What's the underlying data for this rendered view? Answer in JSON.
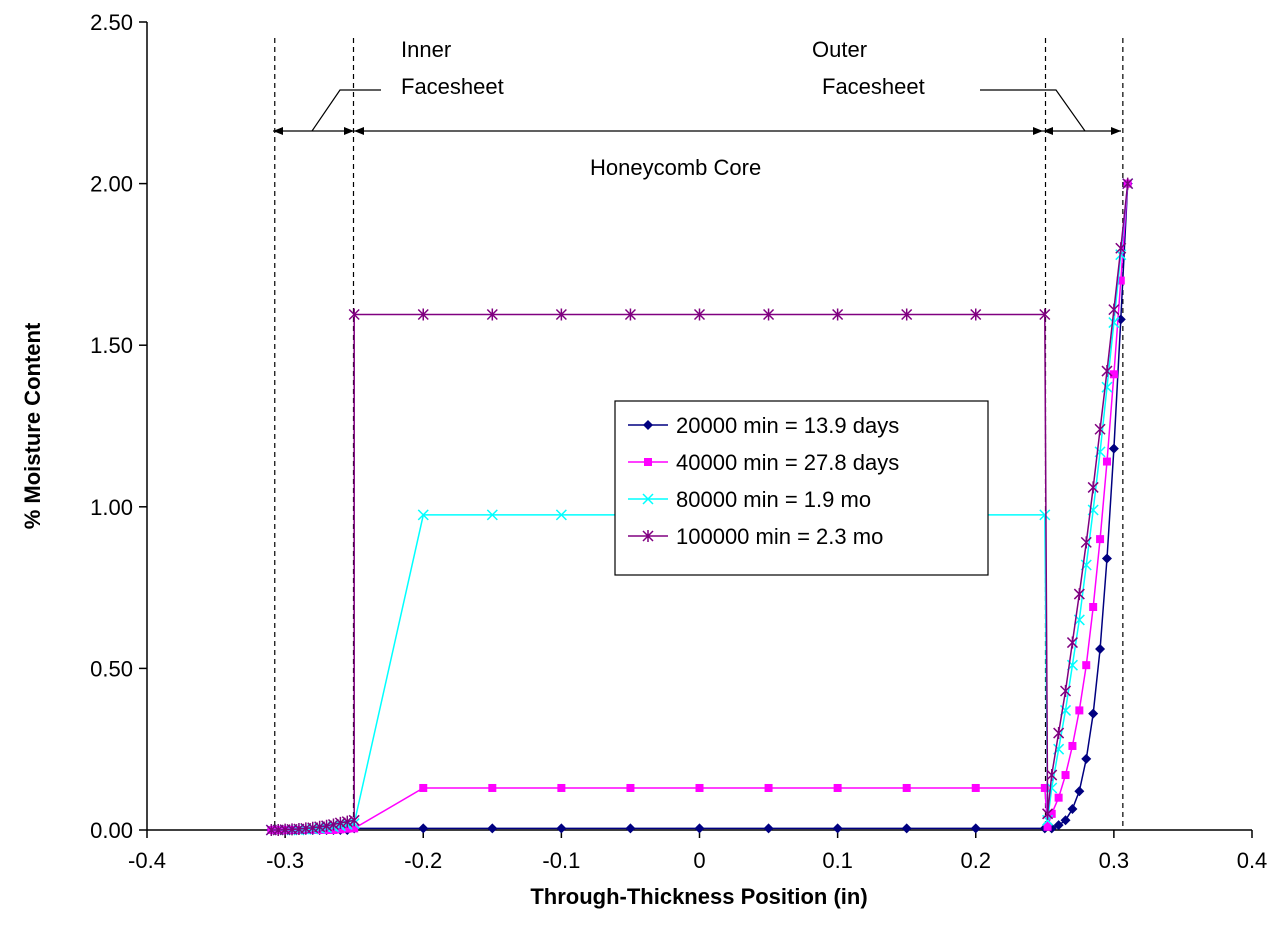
{
  "chart_data": {
    "type": "line",
    "title": "",
    "xlabel": "Through-Thickness Position (in)",
    "ylabel": "% Moisture Content",
    "xlim": [
      -0.4,
      0.4
    ],
    "ylim": [
      0,
      2.5
    ],
    "xticks": [
      "-0.4",
      "-0.3",
      "-0.2",
      "-0.1",
      "0",
      "0.1",
      "0.2",
      "0.3",
      "0.4"
    ],
    "yticks": [
      "0.00",
      "0.50",
      "1.00",
      "1.50",
      "2.00",
      "2.50"
    ],
    "grid": false,
    "legend_position": "center-right",
    "annotations": {
      "inner_line1": "Inner",
      "inner_line2": "Facesheet",
      "outer_line1": "Outer",
      "outer_line2": "Facesheet",
      "core": "Honeycomb Core"
    },
    "reference_lines_x": [
      -0.3075,
      -0.2505,
      0.2505,
      0.3065
    ],
    "series": [
      {
        "name": "20000 min = 13.9 days",
        "color": "#000080",
        "marker": "diamond",
        "x": [
          -0.31,
          -0.305,
          -0.3,
          -0.295,
          -0.29,
          -0.285,
          -0.28,
          -0.275,
          -0.27,
          -0.265,
          -0.26,
          -0.255,
          -0.25,
          -0.2,
          -0.15,
          -0.1,
          -0.05,
          0,
          0.05,
          0.1,
          0.15,
          0.2,
          0.25,
          0.255,
          0.26,
          0.265,
          0.27,
          0.275,
          0.28,
          0.285,
          0.29,
          0.295,
          0.3,
          0.305,
          0.31
        ],
        "y": [
          0,
          0,
          0,
          0,
          0,
          0,
          0,
          0,
          0,
          0,
          0,
          0,
          0.005,
          0.005,
          0.005,
          0.005,
          0.005,
          0.005,
          0.005,
          0.005,
          0.005,
          0.005,
          0.005,
          0.005,
          0.015,
          0.03,
          0.065,
          0.12,
          0.22,
          0.36,
          0.56,
          0.84,
          1.18,
          1.58,
          2.0
        ]
      },
      {
        "name": "40000 min = 27.8 days",
        "color": "#FF00FF",
        "marker": "square",
        "x": [
          -0.31,
          -0.305,
          -0.3,
          -0.295,
          -0.29,
          -0.285,
          -0.28,
          -0.275,
          -0.27,
          -0.265,
          -0.26,
          -0.255,
          -0.25,
          -0.2,
          -0.15,
          -0.1,
          -0.05,
          0,
          0.05,
          0.1,
          0.15,
          0.2,
          0.25,
          0.252,
          0.255,
          0.26,
          0.265,
          0.27,
          0.275,
          0.28,
          0.285,
          0.29,
          0.295,
          0.3,
          0.305,
          0.31
        ],
        "y": [
          0,
          0,
          0,
          0,
          0,
          0,
          0,
          0,
          0,
          0,
          0.002,
          0.004,
          0.005,
          0.13,
          0.13,
          0.13,
          0.13,
          0.13,
          0.13,
          0.13,
          0.13,
          0.13,
          0.13,
          0.01,
          0.05,
          0.1,
          0.17,
          0.26,
          0.37,
          0.51,
          0.69,
          0.9,
          1.14,
          1.41,
          1.7,
          2.0
        ]
      },
      {
        "name": "80000 min = 1.9 mo",
        "color": "#00FFFF",
        "marker": "x",
        "x": [
          -0.31,
          -0.305,
          -0.3,
          -0.295,
          -0.29,
          -0.285,
          -0.28,
          -0.275,
          -0.27,
          -0.265,
          -0.26,
          -0.255,
          -0.25,
          -0.2,
          -0.15,
          -0.1,
          -0.05,
          0,
          0.05,
          0.1,
          0.15,
          0.2,
          0.25,
          0.252,
          0.255,
          0.26,
          0.265,
          0.27,
          0.275,
          0.28,
          0.285,
          0.29,
          0.295,
          0.3,
          0.305,
          0.31
        ],
        "y": [
          0,
          0,
          0,
          0,
          0,
          0.002,
          0.003,
          0.005,
          0.007,
          0.01,
          0.013,
          0.017,
          0.02,
          0.975,
          0.975,
          0.975,
          0.975,
          0.975,
          0.975,
          0.975,
          0.975,
          0.975,
          0.975,
          0.03,
          0.13,
          0.25,
          0.37,
          0.51,
          0.65,
          0.82,
          0.99,
          1.17,
          1.37,
          1.57,
          1.78,
          2.0
        ]
      },
      {
        "name": "100000 min = 2.3 mo",
        "color": "#800080",
        "marker": "star",
        "x": [
          -0.31,
          -0.305,
          -0.3,
          -0.295,
          -0.29,
          -0.285,
          -0.28,
          -0.275,
          -0.27,
          -0.265,
          -0.26,
          -0.255,
          -0.25,
          -0.25,
          -0.2,
          -0.15,
          -0.1,
          -0.05,
          0,
          0.05,
          0.1,
          0.15,
          0.2,
          0.25,
          0.252,
          0.255,
          0.26,
          0.265,
          0.27,
          0.275,
          0.28,
          0.285,
          0.29,
          0.295,
          0.3,
          0.305,
          0.31
        ],
        "y": [
          0,
          0,
          0.001,
          0.002,
          0.003,
          0.005,
          0.007,
          0.01,
          0.013,
          0.017,
          0.022,
          0.026,
          0.03,
          1.595,
          1.595,
          1.595,
          1.595,
          1.595,
          1.595,
          1.595,
          1.595,
          1.595,
          1.595,
          1.595,
          0.05,
          0.17,
          0.3,
          0.43,
          0.58,
          0.73,
          0.89,
          1.06,
          1.24,
          1.42,
          1.61,
          1.8,
          2.0
        ]
      }
    ]
  }
}
